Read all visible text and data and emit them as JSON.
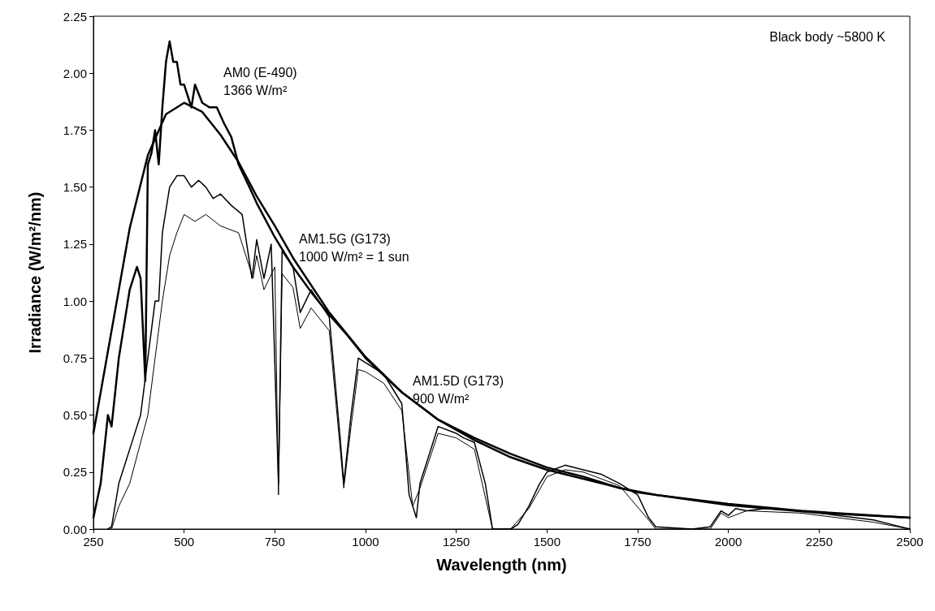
{
  "chart_data": {
    "type": "line",
    "xlabel": "Wavelength (nm)",
    "ylabel": "Irradiance (W/m²/nm)",
    "xlim": [
      250,
      2500
    ],
    "xticks": [
      250,
      500,
      750,
      1000,
      1250,
      1500,
      1750,
      2000,
      2250,
      2500
    ],
    "ylim": [
      0,
      2.25
    ],
    "yticks": [
      {
        "value": 0,
        "label": "0.00"
      },
      0.25,
      {
        "value": 0.5,
        "label": "0.50"
      },
      0.75,
      {
        "value": 1,
        "label": "1.00"
      },
      1.25,
      {
        "value": 1.5,
        "label": "1.50"
      },
      1.75,
      {
        "value": 2,
        "label": "2.00"
      },
      2.25
    ],
    "grid": false,
    "marker": "none",
    "line_style": "solid",
    "series": [
      {
        "color": "#000000",
        "x": [
          250,
          300,
          350,
          400,
          450,
          500,
          550,
          600,
          650,
          700,
          750,
          800,
          900,
          1000,
          1100,
          1200,
          1300,
          1400,
          1500,
          1750,
          2000,
          2250,
          2500
        ],
        "values": [
          0.42,
          0.87,
          1.32,
          1.64,
          1.82,
          1.87,
          1.83,
          1.73,
          1.61,
          1.46,
          1.33,
          1.19,
          0.95,
          0.755,
          0.6,
          0.48,
          0.39,
          0.315,
          0.26,
          0.161,
          0.105,
          0.071,
          0.05
        ]
      },
      {
        "color": "#000000",
        "x": [
          250,
          270,
          290,
          300,
          320,
          340,
          350,
          370,
          380,
          393,
          400,
          410,
          420,
          430,
          440,
          450,
          460,
          470,
          480,
          490,
          500,
          520,
          530,
          550,
          570,
          590,
          610,
          630,
          650,
          680,
          700,
          750,
          800,
          850,
          900,
          950,
          1000,
          1100,
          1200,
          1300,
          1400,
          1500,
          1600,
          1700,
          1800,
          1900,
          2000,
          2200,
          2400,
          2500
        ],
        "values": [
          0.05,
          0.2,
          0.5,
          0.45,
          0.75,
          0.95,
          1.05,
          1.15,
          1.1,
          0.65,
          1.6,
          1.65,
          1.75,
          1.6,
          1.85,
          2.05,
          2.14,
          2.05,
          2.05,
          1.95,
          1.95,
          1.85,
          1.95,
          1.87,
          1.85,
          1.85,
          1.78,
          1.72,
          1.6,
          1.5,
          1.43,
          1.28,
          1.15,
          1.04,
          0.94,
          0.85,
          0.75,
          0.6,
          0.48,
          0.4,
          0.33,
          0.27,
          0.23,
          0.18,
          0.15,
          0.13,
          0.11,
          0.08,
          0.06,
          0.05
        ]
      },
      {
        "color": "#000000",
        "x": [
          290,
          300,
          320,
          340,
          360,
          380,
          400,
          420,
          430,
          440,
          460,
          480,
          500,
          520,
          540,
          560,
          580,
          600,
          630,
          660,
          687,
          700,
          720,
          740,
          760,
          770,
          800,
          820,
          850,
          900,
          930,
          940,
          960,
          980,
          1000,
          1050,
          1100,
          1120,
          1140,
          1150,
          1170,
          1200,
          1250,
          1270,
          1300,
          1330,
          1350,
          1400,
          1420,
          1450,
          1480,
          1500,
          1550,
          1600,
          1650,
          1700,
          1750,
          1780,
          1800,
          1900,
          1950,
          1980,
          2000,
          2020,
          2050,
          2100,
          2200,
          2300,
          2400,
          2450,
          2500
        ],
        "values": [
          0,
          0.01,
          0.2,
          0.3,
          0.4,
          0.5,
          0.75,
          1.0,
          1.0,
          1.3,
          1.5,
          1.55,
          1.55,
          1.5,
          1.53,
          1.5,
          1.45,
          1.47,
          1.42,
          1.38,
          1.1,
          1.27,
          1.1,
          1.25,
          0.2,
          1.22,
          1.15,
          0.95,
          1.05,
          0.93,
          0.4,
          0.2,
          0.5,
          0.75,
          0.73,
          0.68,
          0.55,
          0.15,
          0.05,
          0.2,
          0.3,
          0.45,
          0.42,
          0.4,
          0.38,
          0.2,
          0,
          0,
          0.02,
          0.1,
          0.2,
          0.25,
          0.28,
          0.26,
          0.24,
          0.2,
          0.15,
          0.05,
          0.01,
          0,
          0.01,
          0.08,
          0.06,
          0.09,
          0.08,
          0.09,
          0.08,
          0.06,
          0.04,
          0.02,
          0
        ]
      },
      {
        "color": "#000000",
        "x": [
          300,
          320,
          350,
          400,
          420,
          440,
          460,
          480,
          500,
          530,
          560,
          600,
          650,
          690,
          700,
          720,
          750,
          760,
          770,
          800,
          820,
          850,
          900,
          940,
          960,
          980,
          1000,
          1050,
          1100,
          1130,
          1150,
          1200,
          1250,
          1300,
          1350,
          1400,
          1450,
          1500,
          1550,
          1600,
          1700,
          1780,
          1800,
          1950,
          1980,
          2000,
          2050,
          2200,
          2400,
          2500
        ],
        "values": [
          0,
          0.1,
          0.2,
          0.5,
          0.75,
          1.0,
          1.2,
          1.3,
          1.38,
          1.35,
          1.38,
          1.33,
          1.3,
          1.1,
          1.2,
          1.05,
          1.15,
          0.15,
          1.12,
          1.06,
          0.88,
          0.97,
          0.87,
          0.18,
          0.45,
          0.7,
          0.69,
          0.64,
          0.52,
          0.1,
          0.18,
          0.42,
          0.4,
          0.35,
          0,
          0,
          0.09,
          0.23,
          0.26,
          0.25,
          0.19,
          0.04,
          0,
          0,
          0.07,
          0.05,
          0.08,
          0.07,
          0.03,
          0
        ]
      }
    ],
    "annotations": [
      "Black body ~5800 K",
      "AM0 (E-490)\n1366 W/m²",
      "AM1.5G (G173)\n1000 W/m² = 1 sun",
      "AM1.5D (G173)\n900 W/m²"
    ]
  }
}
